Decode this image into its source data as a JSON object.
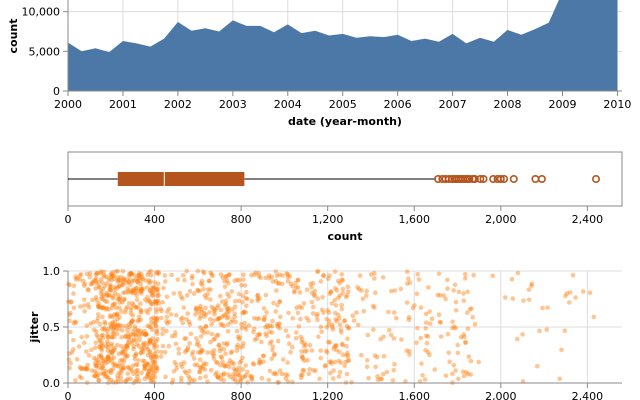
{
  "chart_data": [
    {
      "type": "area",
      "x_label": "date (year-month)",
      "y_label": "count",
      "x_ticks": [
        "2000",
        "2001",
        "2002",
        "2003",
        "2004",
        "2005",
        "2006",
        "2007",
        "2008",
        "2009",
        "2010"
      ],
      "y_ticks": [
        "0",
        "5,000",
        "10,000"
      ],
      "color": "#4c78a8",
      "grid": true,
      "ylim": [
        0,
        15000
      ],
      "xlim": [
        "2000-01",
        "2010-02"
      ],
      "x": [
        "2000-01",
        "2000-04",
        "2000-07",
        "2000-10",
        "2001-01",
        "2001-04",
        "2001-07",
        "2001-10",
        "2002-01",
        "2002-04",
        "2002-07",
        "2002-10",
        "2003-01",
        "2003-04",
        "2003-07",
        "2003-10",
        "2004-01",
        "2004-04",
        "2004-07",
        "2004-10",
        "2005-01",
        "2005-04",
        "2005-07",
        "2005-10",
        "2006-01",
        "2006-04",
        "2006-07",
        "2006-10",
        "2007-01",
        "2007-04",
        "2007-07",
        "2007-10",
        "2008-01",
        "2008-04",
        "2008-07",
        "2008-10",
        "2009-01",
        "2009-04",
        "2009-07",
        "2009-10",
        "2010-01"
      ],
      "values": [
        6100,
        5000,
        5400,
        4900,
        6300,
        6000,
        5600,
        6600,
        8700,
        7600,
        7900,
        7500,
        8900,
        8200,
        8200,
        7400,
        8400,
        7300,
        7600,
        7000,
        7200,
        6700,
        6900,
        6800,
        7100,
        6300,
        6600,
        6200,
        7200,
        6000,
        6700,
        6200,
        7700,
        7100,
        7800,
        8600,
        12500,
        13100,
        14800,
        15000,
        15000
      ]
    },
    {
      "type": "boxplot",
      "x_label": "count",
      "x_ticks": [
        "0",
        "400",
        "800",
        "1,200",
        "1,600",
        "2,000",
        "2,400"
      ],
      "xlim": [
        0,
        2560
      ],
      "color": "#b5541c",
      "whisker_low": 0,
      "q1": 230,
      "median": 445,
      "q3": 815,
      "whisker_high": 1700,
      "outliers": [
        1710,
        1730,
        1745,
        1760,
        1775,
        1785,
        1795,
        1805,
        1815,
        1825,
        1835,
        1845,
        1855,
        1870,
        1880,
        1905,
        1920,
        1965,
        1985,
        2000,
        2015,
        2060,
        2160,
        2190,
        2440
      ]
    },
    {
      "type": "scatter",
      "x_label": "count",
      "y_label": "jitter",
      "x_ticks": [
        "0",
        "400",
        "800",
        "1,200",
        "1,600",
        "2,000",
        "2,400"
      ],
      "y_ticks": [
        "0.0",
        "0.5",
        "1.0"
      ],
      "xlim": [
        0,
        2560
      ],
      "ylim": [
        0,
        1
      ],
      "color": "#ff7f0e"
    }
  ]
}
